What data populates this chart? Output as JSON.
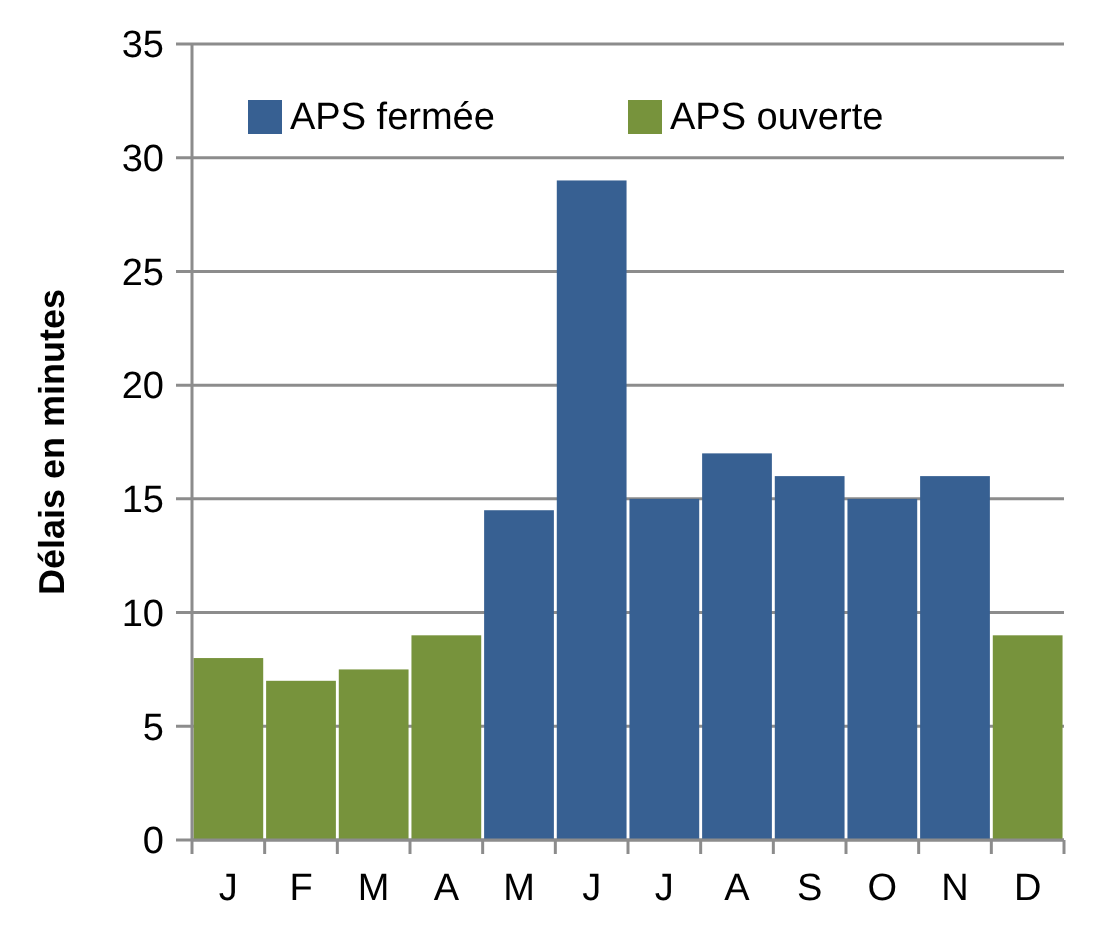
{
  "chart_data": {
    "type": "bar",
    "ylabel": "Délais en minutes",
    "categories": [
      "J",
      "F",
      "M",
      "A",
      "M",
      "J",
      "J",
      "A",
      "S",
      "O",
      "N",
      "D"
    ],
    "series": [
      {
        "name": "APS fermée",
        "color": "#376092",
        "values": [
          null,
          null,
          null,
          null,
          14.5,
          29,
          15,
          17,
          16,
          15,
          16,
          null
        ]
      },
      {
        "name": "APS ouverte",
        "color": "#77933c",
        "values": [
          8,
          7,
          7.5,
          9,
          null,
          null,
          null,
          null,
          null,
          null,
          null,
          9
        ]
      }
    ],
    "stacked": true,
    "ylim": [
      0,
      35
    ],
    "yticks": [
      0,
      5,
      10,
      15,
      20,
      25,
      30,
      35
    ],
    "grid": "y",
    "legend": "top"
  }
}
